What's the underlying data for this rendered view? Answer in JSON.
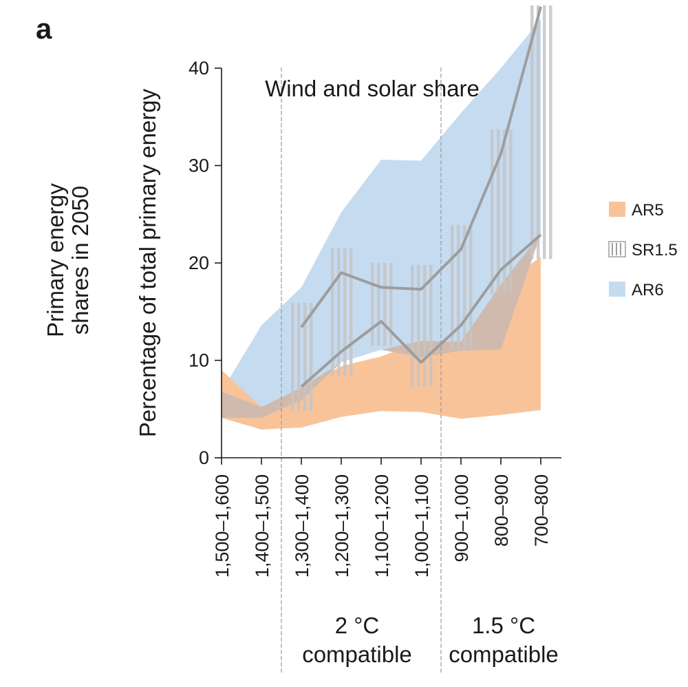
{
  "panel_label": "a",
  "side_title": [
    "Primary energy",
    "shares in 2050"
  ],
  "colors": {
    "ar5": "#f9c39a",
    "ar6": "#c5dbf0",
    "sr15": "#9d9d9d",
    "sr15_bar": "#c4c4c4",
    "overlap": "#cdb9ae"
  },
  "chart_data": {
    "type": "area",
    "title": "Wind and solar share",
    "xlabel": "",
    "ylabel": "Percentage of total primary energy",
    "ylim": [
      0,
      40
    ],
    "yticks": [
      0,
      10,
      20,
      30,
      40
    ],
    "categories": [
      "1,500–1,600",
      "1,400–1,500",
      "1,300–1,400",
      "1,200–1,300",
      "1,100–1,200",
      "1,000–1,100",
      "900–1,000",
      "800–900",
      "700–800"
    ],
    "separators_between": [
      [
        1,
        2
      ],
      [
        5,
        6
      ]
    ],
    "group_labels": [
      {
        "lines": [
          "2 °C",
          "compatible"
        ],
        "from": 2,
        "to": 5
      },
      {
        "lines": [
          "1.5 °C",
          "compatible"
        ],
        "from": 6,
        "to": 8
      }
    ],
    "series": [
      {
        "name": "AR5",
        "kind": "range",
        "lower": [
          4.1,
          2.9,
          3.1,
          4.2,
          4.8,
          4.7,
          4.0,
          4.4,
          4.9
        ],
        "upper": [
          9.0,
          5.2,
          7.2,
          9.4,
          10.4,
          12.0,
          11.9,
          17.8,
          20.6
        ]
      },
      {
        "name": "AR6",
        "kind": "range",
        "lower": [
          4.1,
          4.1,
          5.9,
          9.8,
          11.1,
          10.3,
          11.0,
          11.1,
          23.0
        ],
        "upper": [
          6.8,
          13.6,
          17.5,
          25.2,
          30.6,
          30.5,
          35.4,
          40.0,
          45.0
        ]
      },
      {
        "name": "SR1.5",
        "kind": "range-lines",
        "upper": [
          null,
          null,
          13.4,
          19.0,
          17.5,
          17.3,
          21.4,
          31.2,
          46.3
        ],
        "lower": [
          null,
          null,
          7.3,
          10.9,
          14.0,
          9.8,
          13.6,
          19.3,
          22.9
        ]
      }
    ],
    "legend": [
      "AR5",
      "SR1.5",
      "AR6"
    ],
    "legend_position": "right"
  }
}
